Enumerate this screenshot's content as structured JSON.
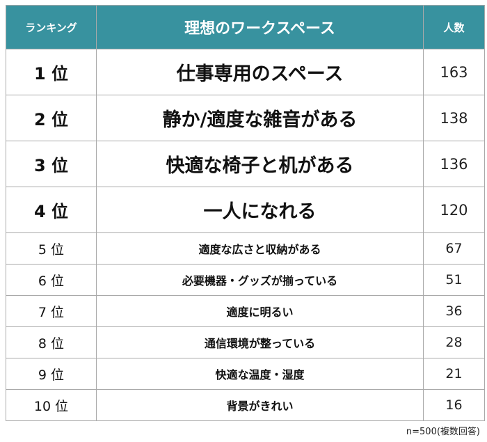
{
  "header": {
    "rank_label": "ランキング",
    "item_label": "理想のワークスペース",
    "count_label": "人数"
  },
  "rows": [
    {
      "rank": "1 位",
      "item": "仕事専用のスペース",
      "count": "163"
    },
    {
      "rank": "2 位",
      "item": "静か/適度な雑音がある",
      "count": "138"
    },
    {
      "rank": "3 位",
      "item": "快適な椅子と机がある",
      "count": "136"
    },
    {
      "rank": "4 位",
      "item": "一人になれる",
      "count": "120"
    },
    {
      "rank": "5 位",
      "item": "適度な広さと収納がある",
      "count": "67"
    },
    {
      "rank": "6 位",
      "item": "必要機器・グッズが揃っている",
      "count": "51"
    },
    {
      "rank": "7 位",
      "item": "適度に明るい",
      "count": "36"
    },
    {
      "rank": "8 位",
      "item": "通信環境が整っている",
      "count": "28"
    },
    {
      "rank": "9 位",
      "item": "快適な温度・湿度",
      "count": "21"
    },
    {
      "rank": "10 位",
      "item": "背景がきれい",
      "count": "16"
    }
  ],
  "footnote": "n=500(複数回答)",
  "colors": {
    "header_bg": "#38929f",
    "header_text": "#ffffff",
    "border": "#a9a9a9"
  }
}
